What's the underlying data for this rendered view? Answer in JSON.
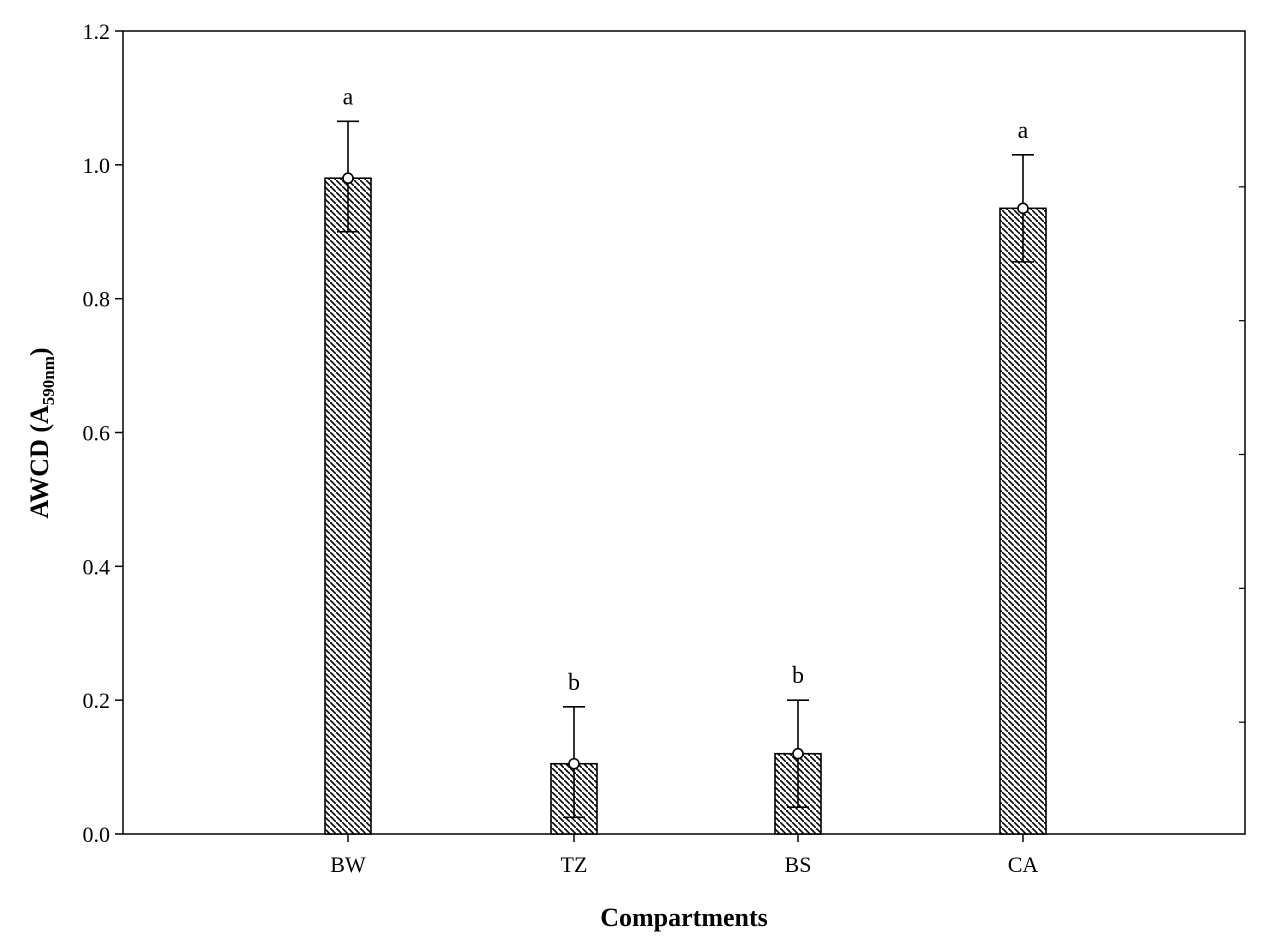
{
  "chart_data": {
    "type": "bar",
    "xlabel": "Compartments",
    "ylabel": {
      "main": "AWCD (A",
      "subscript": "590nm",
      "close": ")"
    },
    "ylim": [
      0,
      1.2
    ],
    "yticks": [
      0.0,
      0.2,
      0.4,
      0.6,
      0.8,
      1.0,
      1.2
    ],
    "ytick_labels": [
      "0.0",
      "0.2",
      "0.4",
      "0.6",
      "0.8",
      "1.0",
      "1.2"
    ],
    "categories": [
      "BW",
      "TZ",
      "BS",
      "CA"
    ],
    "values": [
      0.98,
      0.105,
      0.12,
      0.935
    ],
    "error_low": [
      0.9,
      0.025,
      0.04,
      0.855
    ],
    "error_high": [
      1.065,
      0.19,
      0.2,
      1.015
    ],
    "significance_letters": [
      "a",
      "b",
      "b",
      "a"
    ],
    "grid": false,
    "bar_fill": "diagonal-hatch",
    "colors": {
      "bar_stroke": "#000000",
      "hatch": "#000000",
      "background": "#ffffff"
    }
  }
}
